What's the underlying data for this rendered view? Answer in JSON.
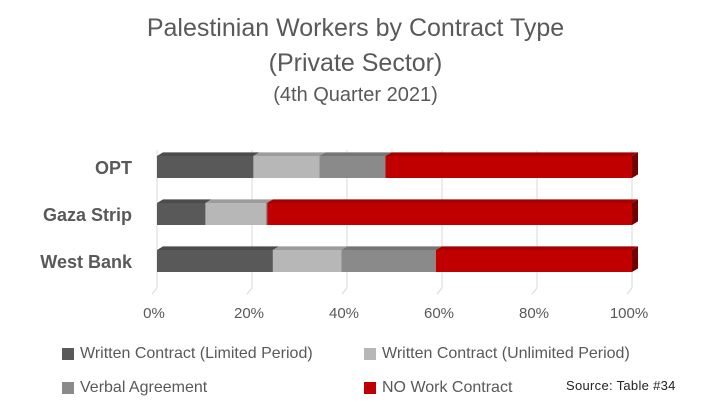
{
  "chart_data": {
    "type": "bar",
    "orientation": "horizontal",
    "stacked": "percent",
    "title": "Palestinian Workers by Contract Type",
    "subtitle_line1": "(Private Sector)",
    "subtitle_line2": "(4th Quarter 2021)",
    "categories": [
      "OPT",
      "Gaza Strip",
      "West Bank"
    ],
    "series": [
      {
        "name": "Written Contract (Limited Period)",
        "color": "#595959",
        "values": [
          20.3,
          10.2,
          24.4
        ]
      },
      {
        "name": "Written Contract (Unlimited Period)",
        "color": "#b7b7b7",
        "values": [
          13.9,
          12.7,
          14.4
        ]
      },
      {
        "name": "Verbal Agreement",
        "color": "#8a8a8a",
        "values": [
          13.9,
          0.3,
          19.9
        ]
      },
      {
        "name": "NO Work Contract",
        "color": "#c00000",
        "values": [
          51.9,
          76.8,
          41.3
        ]
      }
    ],
    "xlim": [
      0,
      100
    ],
    "xticks": [
      "0%",
      "20%",
      "40%",
      "60%",
      "80%",
      "100%"
    ],
    "xlabel": "",
    "ylabel": "",
    "legend_position": "bottom",
    "grid": true
  },
  "source_label": "Source: Table #34"
}
